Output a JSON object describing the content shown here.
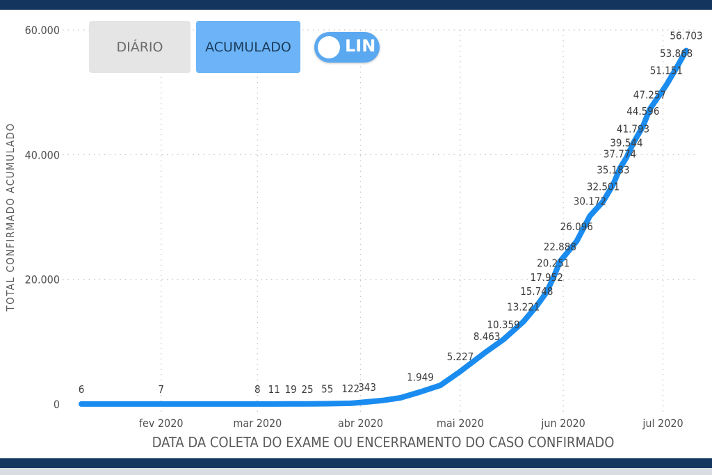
{
  "controls": {
    "daily_label": "DIÁRIO",
    "cumulative_label": "ACUMULADO",
    "scale_toggle_label": "LIN"
  },
  "colors": {
    "line": "#1a8cf0",
    "active_button": "#6cb4f7",
    "inactive_button": "#e5e5e5",
    "frame": "#14365e"
  },
  "chart_data": {
    "type": "line",
    "xlabel": "DATA DA COLETA DO EXAME OU ENCERRAMENTO DO CASO CONFIRMADO",
    "ylabel": "TOTAL CONFIRMADO ACUMULADO",
    "ylim": [
      0,
      60000
    ],
    "xlim": [
      "2020-01-08",
      "2020-07-08"
    ],
    "grid": true,
    "y_ticks": [
      {
        "value": 0,
        "label": "0"
      },
      {
        "value": 20000,
        "label": "20.000"
      },
      {
        "value": 40000,
        "label": "40.000"
      },
      {
        "value": 60000,
        "label": "60.000"
      }
    ],
    "x_ticks": [
      {
        "date": "2020-02-01",
        "label": "fev 2020"
      },
      {
        "date": "2020-03-01",
        "label": "mar 2020"
      },
      {
        "date": "2020-04-01",
        "label": "abr 2020"
      },
      {
        "date": "2020-05-01",
        "label": "mai 2020"
      },
      {
        "date": "2020-06-01",
        "label": "jun 2020"
      },
      {
        "date": "2020-07-01",
        "label": "jul 2020"
      }
    ],
    "series": [
      {
        "points": [
          {
            "date": "2020-01-08",
            "value": 6,
            "label": "6"
          },
          {
            "date": "2020-02-01",
            "value": 7,
            "label": "7"
          },
          {
            "date": "2020-03-01",
            "value": 8,
            "label": "8"
          },
          {
            "date": "2020-03-06",
            "value": 11,
            "label": "11"
          },
          {
            "date": "2020-03-11",
            "value": 19,
            "label": "19"
          },
          {
            "date": "2020-03-16",
            "value": 25,
            "label": "25"
          },
          {
            "date": "2020-03-22",
            "value": 55,
            "label": "55"
          },
          {
            "date": "2020-03-29",
            "value": 122,
            "label": "122"
          },
          {
            "date": "2020-04-03",
            "value": 343,
            "label": "343"
          },
          {
            "date": "2020-04-08",
            "value": 600
          },
          {
            "date": "2020-04-13",
            "value": 1000
          },
          {
            "date": "2020-04-19",
            "value": 1949,
            "label": "1.949"
          },
          {
            "date": "2020-04-25",
            "value": 3000
          },
          {
            "date": "2020-05-01",
            "value": 5227,
            "label": "5.227"
          },
          {
            "date": "2020-05-09",
            "value": 8463,
            "label": "8.463"
          },
          {
            "date": "2020-05-14",
            "value": 10359,
            "label": "10.359"
          },
          {
            "date": "2020-05-20",
            "value": 13221,
            "label": "13.221"
          },
          {
            "date": "2020-05-24",
            "value": 15748,
            "label": "15.748"
          },
          {
            "date": "2020-05-27",
            "value": 17952,
            "label": "17.952"
          },
          {
            "date": "2020-05-29",
            "value": 20251,
            "label": "20.251"
          },
          {
            "date": "2020-05-31",
            "value": 22888,
            "label": "22.888"
          },
          {
            "date": "2020-06-05",
            "value": 26096,
            "label": "26.096"
          },
          {
            "date": "2020-06-09",
            "value": 30172,
            "label": "30.172"
          },
          {
            "date": "2020-06-13",
            "value": 32501,
            "label": "32.501"
          },
          {
            "date": "2020-06-16",
            "value": 35183,
            "label": "35.183"
          },
          {
            "date": "2020-06-18",
            "value": 37774,
            "label": "37.774"
          },
          {
            "date": "2020-06-20",
            "value": 39544,
            "label": "39.544"
          },
          {
            "date": "2020-06-22",
            "value": 41793,
            "label": "41.793"
          },
          {
            "date": "2020-06-25",
            "value": 44596,
            "label": "44.596"
          },
          {
            "date": "2020-06-27",
            "value": 47257,
            "label": "47.257"
          },
          {
            "date": "2020-07-02",
            "value": 51151,
            "label": "51.151"
          },
          {
            "date": "2020-07-05",
            "value": 53868,
            "label": "53.868"
          },
          {
            "date": "2020-07-08",
            "value": 56703,
            "label": "56.703"
          }
        ]
      }
    ]
  }
}
